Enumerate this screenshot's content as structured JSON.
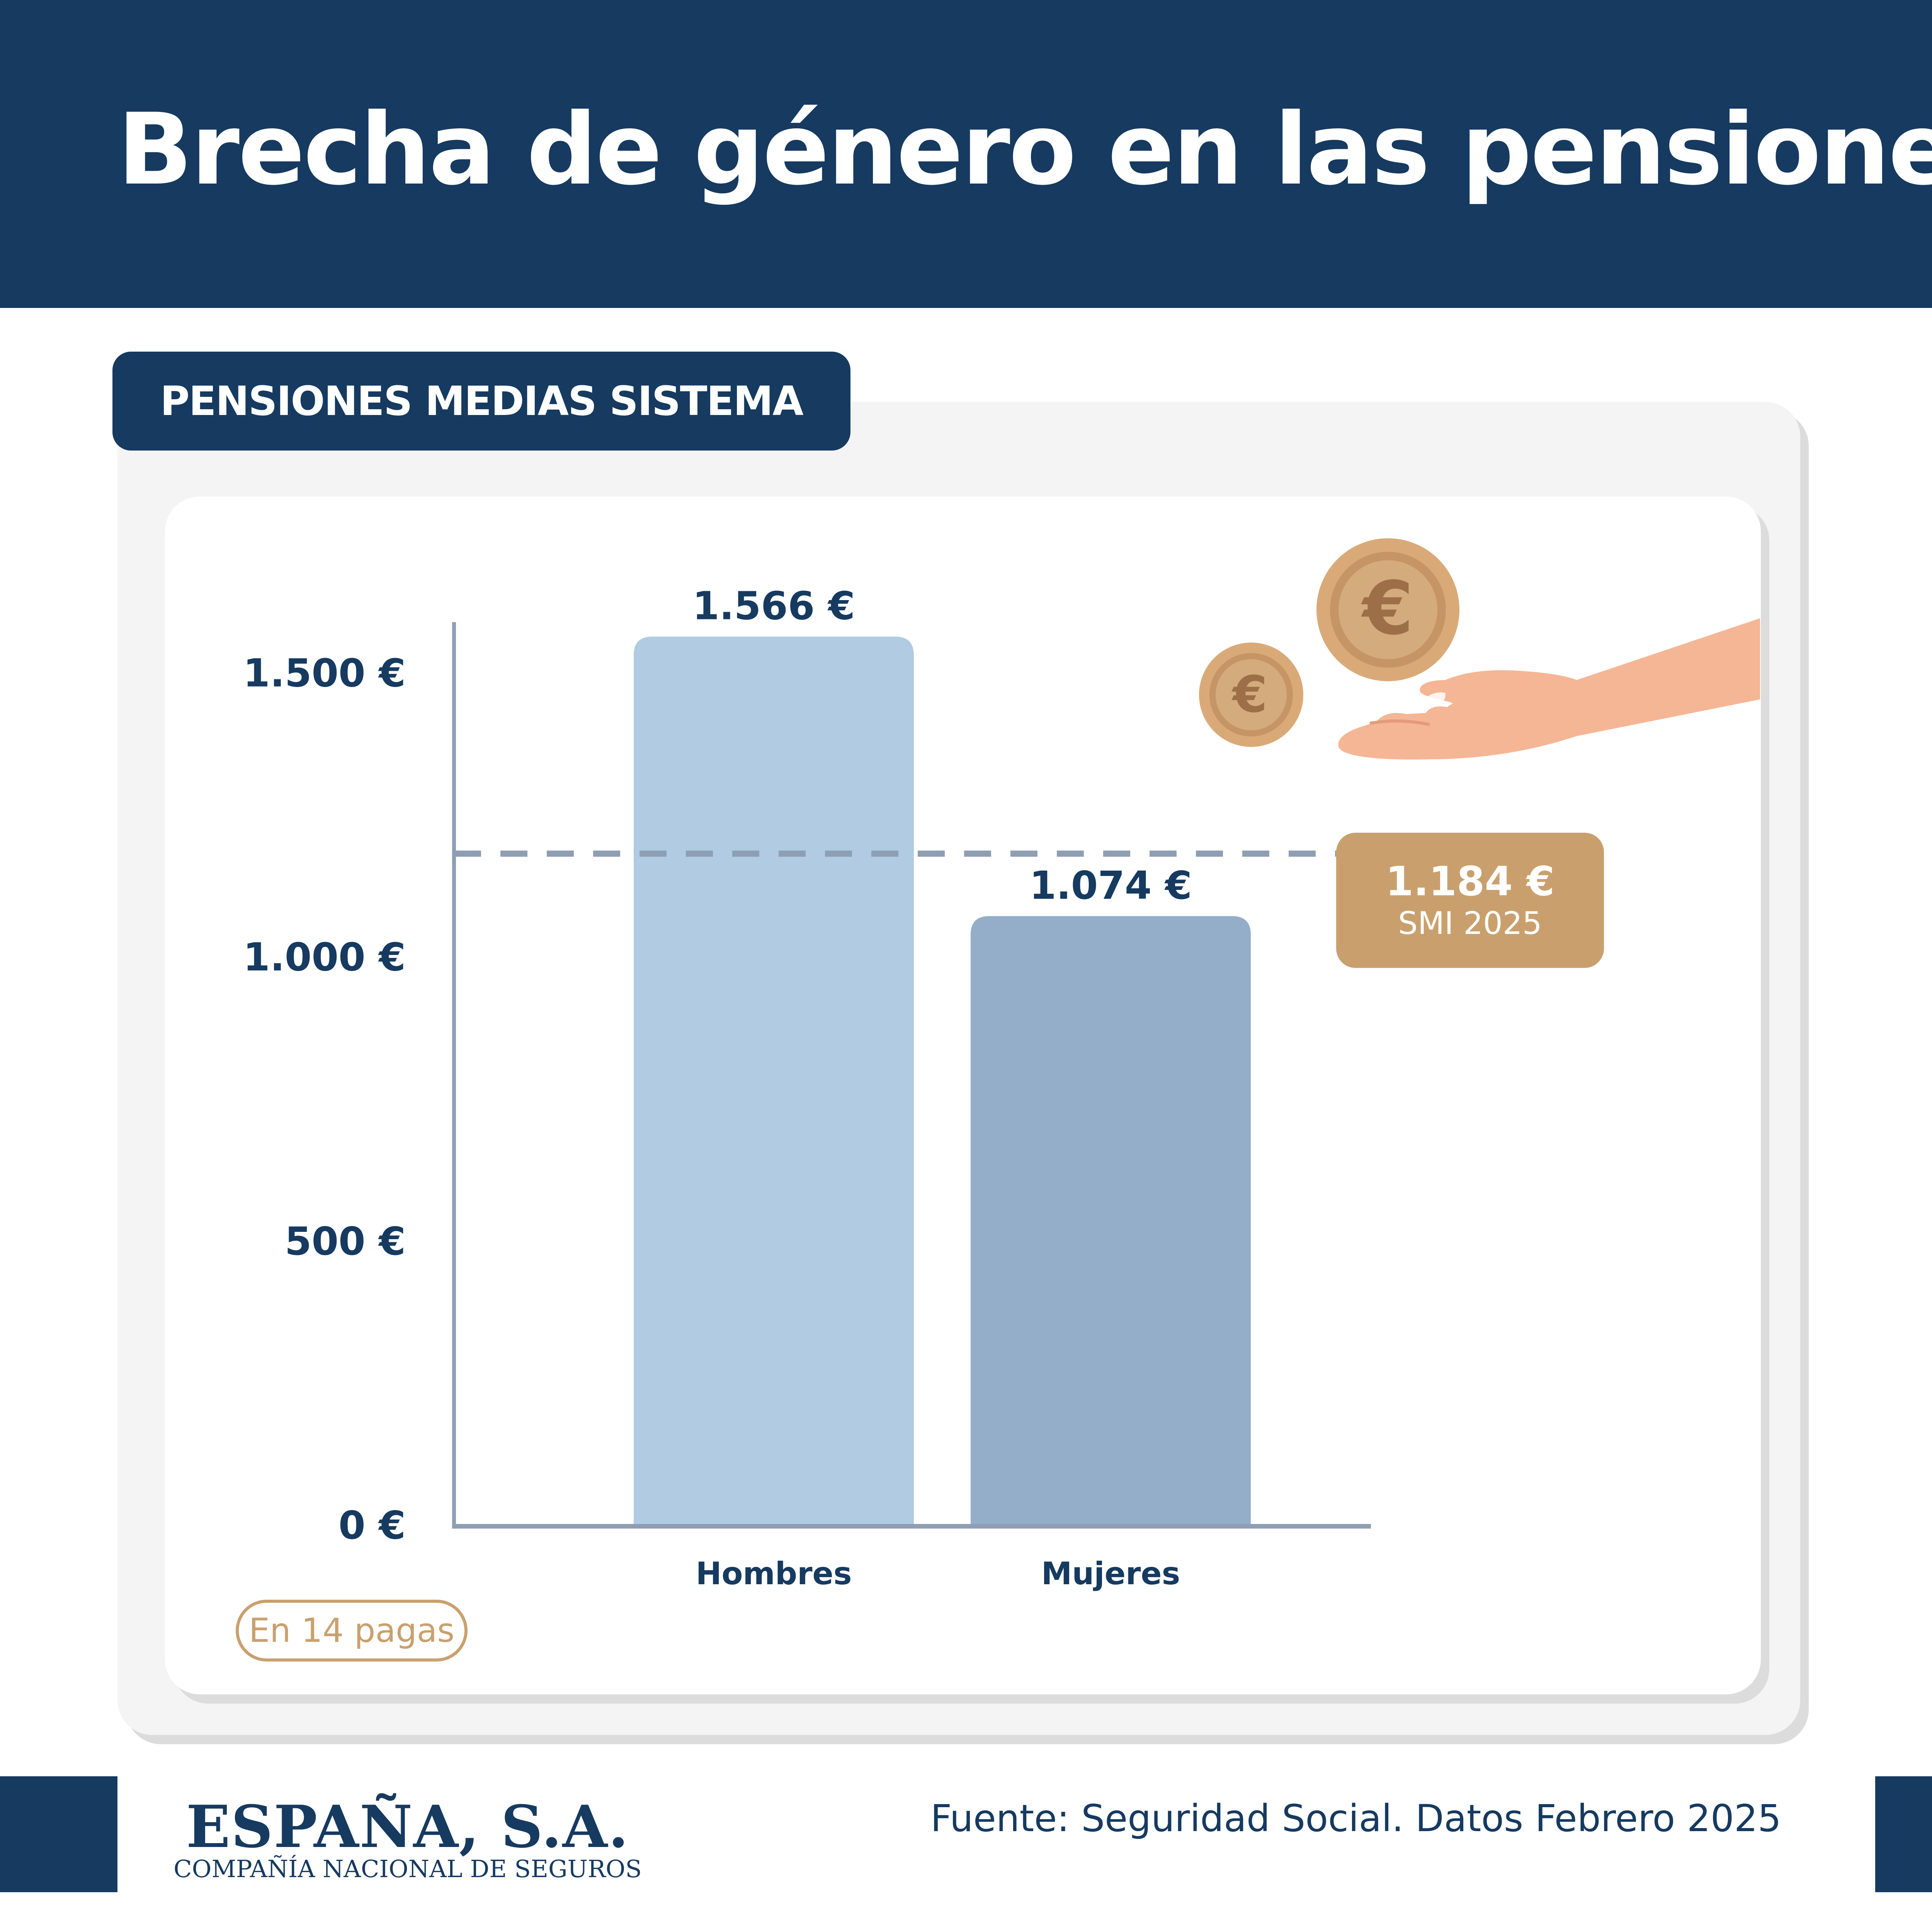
{
  "header": {
    "title": "Brecha de género en las pensiones"
  },
  "section": {
    "tab_label": "PENSIONES MEDIAS SISTEMA"
  },
  "chart_data": {
    "type": "bar",
    "categories": [
      "Hombres",
      "Mujeres"
    ],
    "values": [
      1566,
      1074
    ],
    "value_labels": [
      "1.566 €",
      "1.074 €"
    ],
    "y_ticks": [
      0,
      500,
      1000,
      1500
    ],
    "y_tick_labels": [
      "0 €",
      "500 €",
      "1.000 €",
      "1.500 €"
    ],
    "ylim": [
      0,
      1850
    ],
    "bar_colors": [
      "#b0cbe2",
      "#94aec9"
    ],
    "reference_line": {
      "value": 1184,
      "label_value": "1.184 €",
      "label": "SMI 2025",
      "style": "dashed"
    },
    "grid": false,
    "legend": "none"
  },
  "note": {
    "label": "En 14 pagas"
  },
  "illustration": {
    "icons": [
      "euro-coin-icon",
      "euro-coin-icon",
      "open-hand-icon"
    ]
  },
  "footer": {
    "logo_main": "ESPAÑA, S.A.",
    "logo_sub": "COMPAÑÍA NACIONAL DE SEGUROS",
    "source": "Fuente: Seguridad Social. Datos Febrero 2025"
  },
  "colors": {
    "navy": "#163a60",
    "gold": "#c9a06d",
    "axis": "#8f9fb3",
    "bar_men": "#b0cbe2",
    "bar_women": "#94aec9"
  }
}
